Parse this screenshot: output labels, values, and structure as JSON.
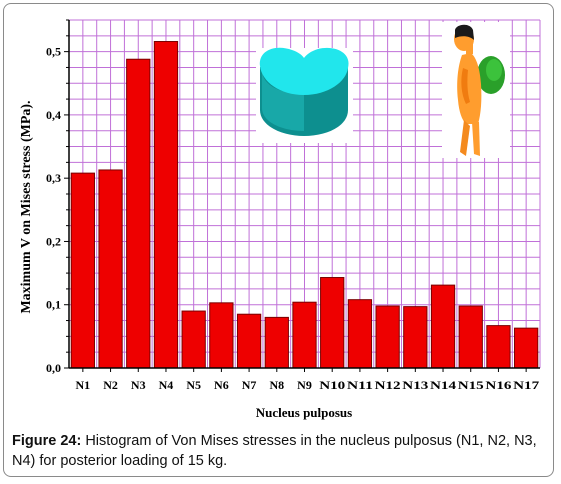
{
  "chart_data": {
    "type": "bar",
    "categories": [
      "N1",
      "N2",
      "N3",
      "N4",
      "N5",
      "N6",
      "N7",
      "N8",
      "N9",
      "N10",
      "N11",
      "N12",
      "N13",
      "N14",
      "N15",
      "N16",
      "N17"
    ],
    "series": [
      {
        "values": [
          0.308,
          0.313,
          0.488,
          0.516,
          0.09,
          0.103,
          0.085,
          0.08,
          0.104,
          0.143,
          0.108,
          0.098,
          0.097,
          0.131,
          0.098,
          0.067,
          0.063
        ]
      }
    ],
    "xlabel": "Nucleus pulposus",
    "ylabel": "Maximum V on Mises stress (MPa).",
    "ylim": [
      0,
      0.55
    ],
    "yticks": [
      "0,0",
      "0,1",
      "0,2",
      "0,3",
      "0,4",
      "0,5"
    ],
    "ytick_values": [
      0,
      0.1,
      0.2,
      0.3,
      0.4,
      0.5
    ],
    "grid": true,
    "colors": {
      "bar": "#ee0000",
      "bar_edge": "#7a0000",
      "grid": "#c070d8",
      "axis": "#000000"
    }
  },
  "caption": {
    "label": "Figure 24:",
    "text": " Histogram of Von Mises stresses in the nucleus pulposus (N1, N2, N3, N4) for posterior loading of 15 kg."
  },
  "images": {
    "disc": "intervertebral-disc-model",
    "figure": "person-with-backpack"
  }
}
